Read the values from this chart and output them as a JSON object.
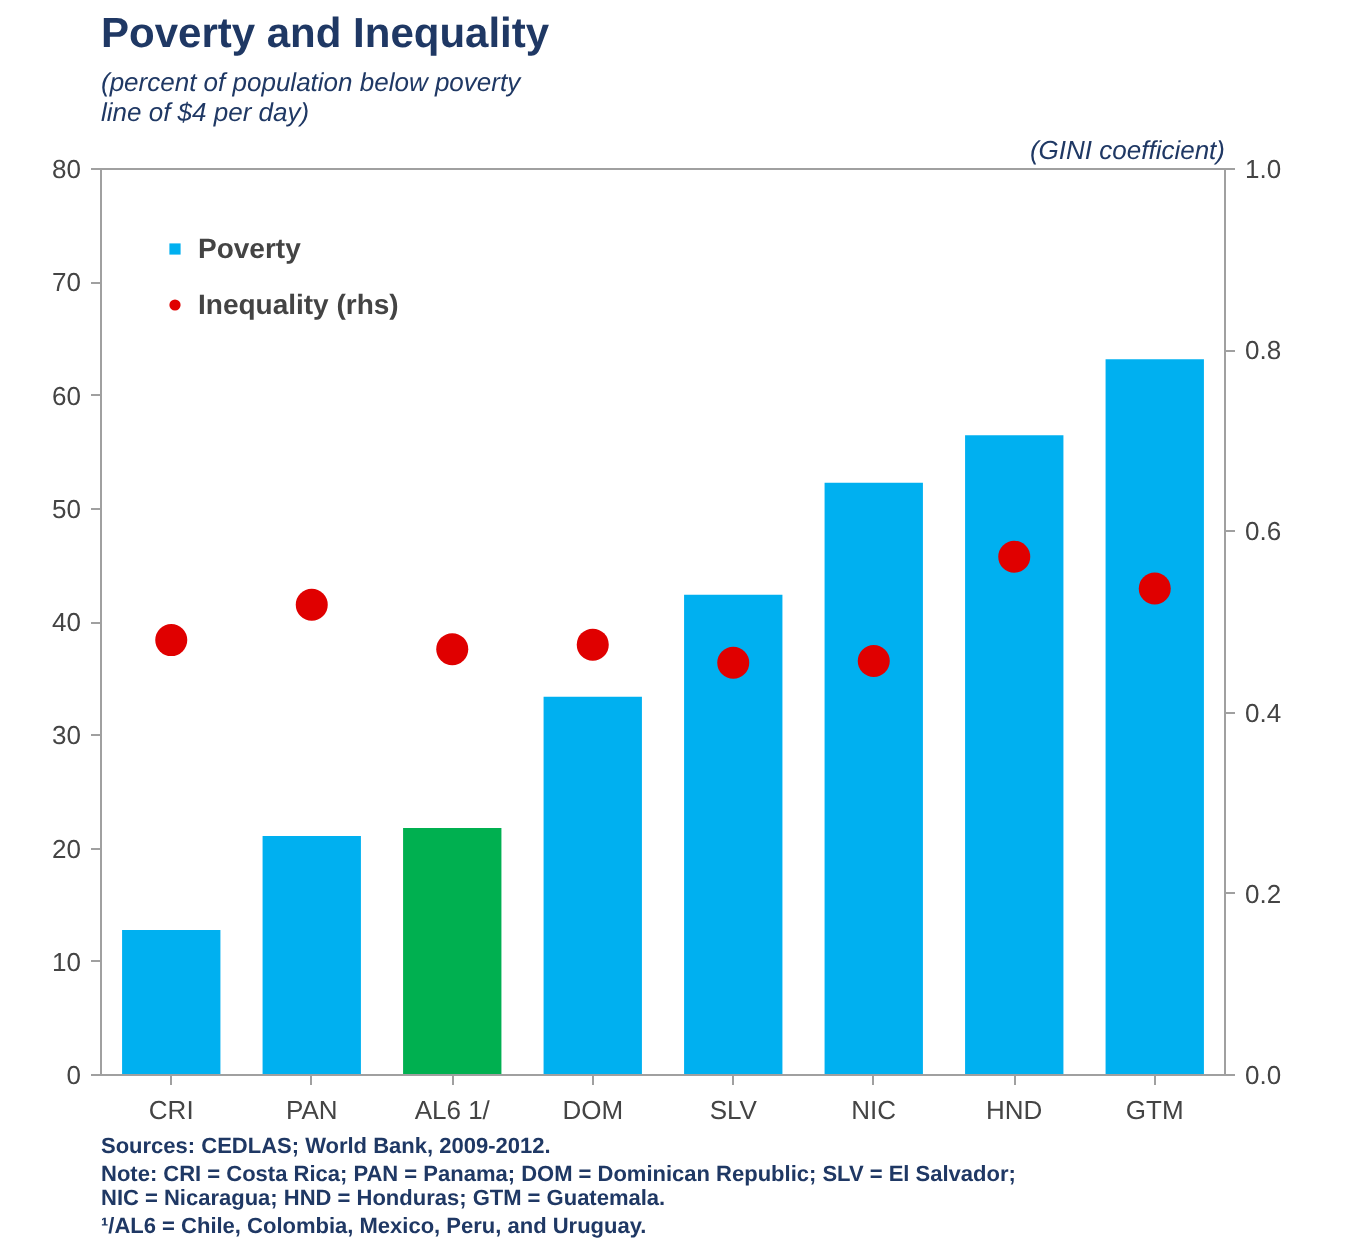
{
  "chart_data": {
    "type": "bar",
    "title": "Poverty and Inequality",
    "ylabel": "(percent of population below poverty line of $4 per day)",
    "y2label": "(GINI coefficient)",
    "categories": [
      "CRI",
      "PAN",
      "AL6 1/",
      "DOM",
      "SLV",
      "NIC",
      "HND",
      "GTM"
    ],
    "series": [
      {
        "name": "Poverty",
        "colors": [
          "#00b0f0",
          "#00b0f0",
          "#00b050",
          "#00b0f0",
          "#00b0f0",
          "#00b0f0",
          "#00b0f0",
          "#00b0f0"
        ],
        "values": [
          12.8,
          21.1,
          21.8,
          33.4,
          42.4,
          52.3,
          56.5,
          63.2
        ]
      },
      {
        "name": "Inequality (rhs)",
        "type": "scatter",
        "axis": "y2",
        "color": "#e00000",
        "marker": "circle",
        "values": [
          0.48,
          0.519,
          0.47,
          0.475,
          0.455,
          0.457,
          0.572,
          0.537
        ]
      }
    ],
    "ylim": [
      0,
      80
    ],
    "yticks": [
      0,
      10,
      20,
      30,
      40,
      50,
      60,
      70,
      80
    ],
    "y2lim": [
      0,
      1.0
    ],
    "y2ticks": [
      {
        "value": 0,
        "label": "0.0"
      },
      {
        "value": 0.2,
        "label": "0.2"
      },
      {
        "value": 0.4,
        "label": "0.4"
      },
      {
        "value": 0.6,
        "label": "0.6"
      },
      {
        "value": 0.8,
        "label": "0.8"
      },
      {
        "value": 1.0,
        "label": "1.0"
      }
    ],
    "grid": false,
    "legend": "top left",
    "annotations": [
      "Sources: CEDLAS; World Bank, 2009-2012.",
      "Note: CRI = Costa Rica; PAN = Panama; DOM = Dominican Republic; SLV = El Salvador; NIC = Nicaragua; HND = Honduras; GTM = Guatemala.",
      "¹/AL6 = Chile, Colombia, Mexico, Peru, and Uruguay."
    ]
  }
}
